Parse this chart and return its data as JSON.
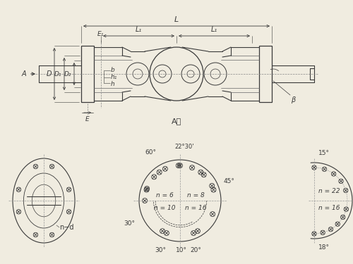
{
  "bg_color": "#f0ece0",
  "line_color": "#3a3a3a",
  "dim_color": "#3a3a3a",
  "title": "A向",
  "labels": {
    "L": "L",
    "L1_left": "L₁",
    "L1_right": "L₁",
    "D": "D",
    "D1": "D₁",
    "D2": "D₂",
    "b": "b",
    "h1": "h₁",
    "h": "h",
    "E1": "E₁",
    "E": "E",
    "beta": "β",
    "A_arrow": "A",
    "nd": "n−d"
  }
}
